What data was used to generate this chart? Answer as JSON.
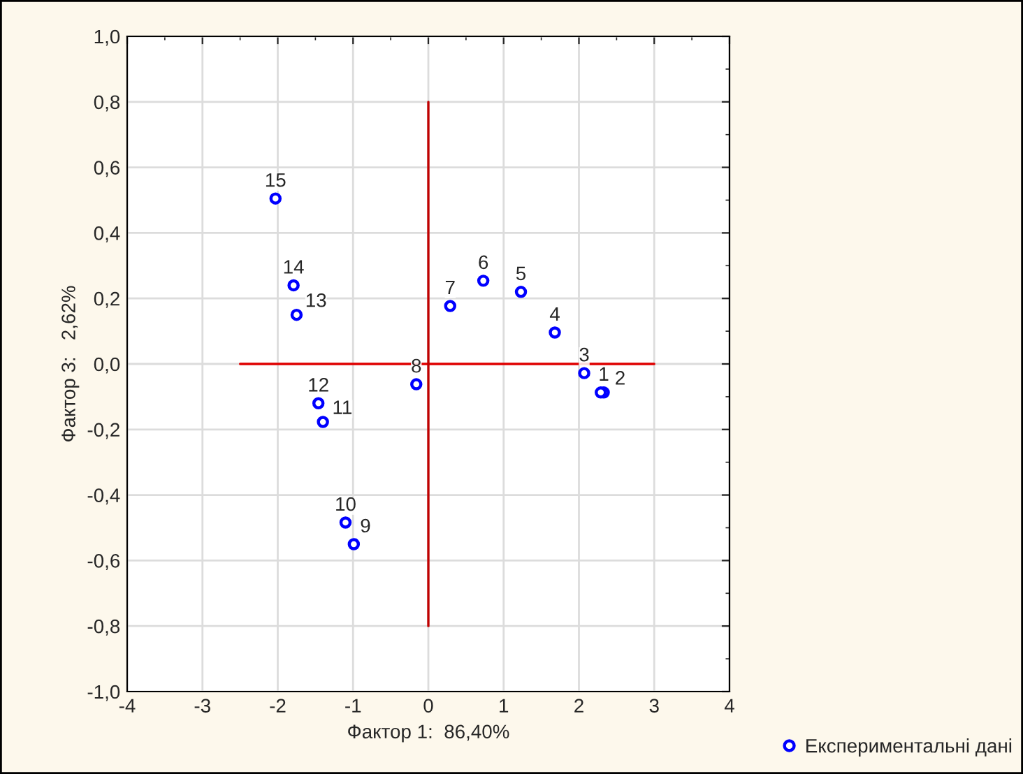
{
  "chart_data": {
    "type": "scatter",
    "xlabel": "Фактор 1:  86,40%",
    "ylabel": "Фактор 3:   2,62%",
    "x": [
      2.33,
      2.29,
      2.07,
      1.68,
      1.23,
      0.73,
      0.29,
      -0.16,
      -0.99,
      -1.1,
      -1.4,
      -1.46,
      -1.75,
      -1.79,
      -2.03
    ],
    "series": [
      {
        "name": "Експериментальні дані",
        "color": "#0000ff",
        "marker": "circle",
        "values": [
          -0.087,
          -0.087,
          -0.028,
          0.096,
          0.22,
          0.254,
          0.177,
          -0.062,
          -0.55,
          -0.484,
          -0.177,
          -0.12,
          0.15,
          0.24,
          0.505
        ]
      },
      {
        "type": "line",
        "color": "#e00000",
        "x": [
          -2.5,
          3
        ],
        "values": [
          0,
          0
        ]
      },
      {
        "type": "line",
        "color": "#c00000",
        "x": [
          0,
          0
        ],
        "values": [
          -0.8,
          0.8
        ]
      }
    ],
    "xlim": [
      -4,
      4
    ],
    "ylim": [
      -1,
      1
    ],
    "xticks": [
      -4,
      -3,
      -2,
      -1,
      0,
      1,
      2,
      3,
      4
    ],
    "yticks": [
      {
        "value": -1,
        "label": "-1,0"
      },
      {
        "value": -0.8,
        "label": "-0,8"
      },
      {
        "value": -0.6,
        "label": "-0,6"
      },
      {
        "value": -0.4,
        "label": "-0,4"
      },
      {
        "value": -0.2,
        "label": "-0,2"
      },
      {
        "value": 0,
        "label": "0,0"
      },
      {
        "value": 0.2,
        "label": "0,2"
      },
      {
        "value": 0.4,
        "label": "0,4"
      },
      {
        "value": 0.6,
        "label": "0,6"
      },
      {
        "value": 0.8,
        "label": "0,8"
      },
      {
        "value": 1,
        "label": "1,0"
      }
    ],
    "annotations": [
      {
        "text": "1",
        "x": 2.33,
        "y": -0.087
      },
      {
        "text": "2",
        "x": 2.29,
        "y": -0.087
      },
      {
        "text": "3",
        "x": 2.07,
        "y": -0.028
      },
      {
        "text": "4",
        "x": 1.68,
        "y": 0.096
      },
      {
        "text": "5",
        "x": 1.23,
        "y": 0.22
      },
      {
        "text": "6",
        "x": 0.73,
        "y": 0.254
      },
      {
        "text": "7",
        "x": 0.29,
        "y": 0.177
      },
      {
        "text": "8",
        "x": -0.16,
        "y": -0.062
      },
      {
        "text": "9",
        "x": -0.99,
        "y": -0.55
      },
      {
        "text": "10",
        "x": -1.1,
        "y": -0.484
      },
      {
        "text": "11",
        "x": -1.4,
        "y": -0.177
      },
      {
        "text": "12",
        "x": -1.46,
        "y": -0.12
      },
      {
        "text": "13",
        "x": -1.75,
        "y": 0.15
      },
      {
        "text": "14",
        "x": -1.79,
        "y": 0.24
      },
      {
        "text": "15",
        "x": -2.03,
        "y": 0.505
      }
    ],
    "grid": true,
    "legend": "bottom right"
  }
}
